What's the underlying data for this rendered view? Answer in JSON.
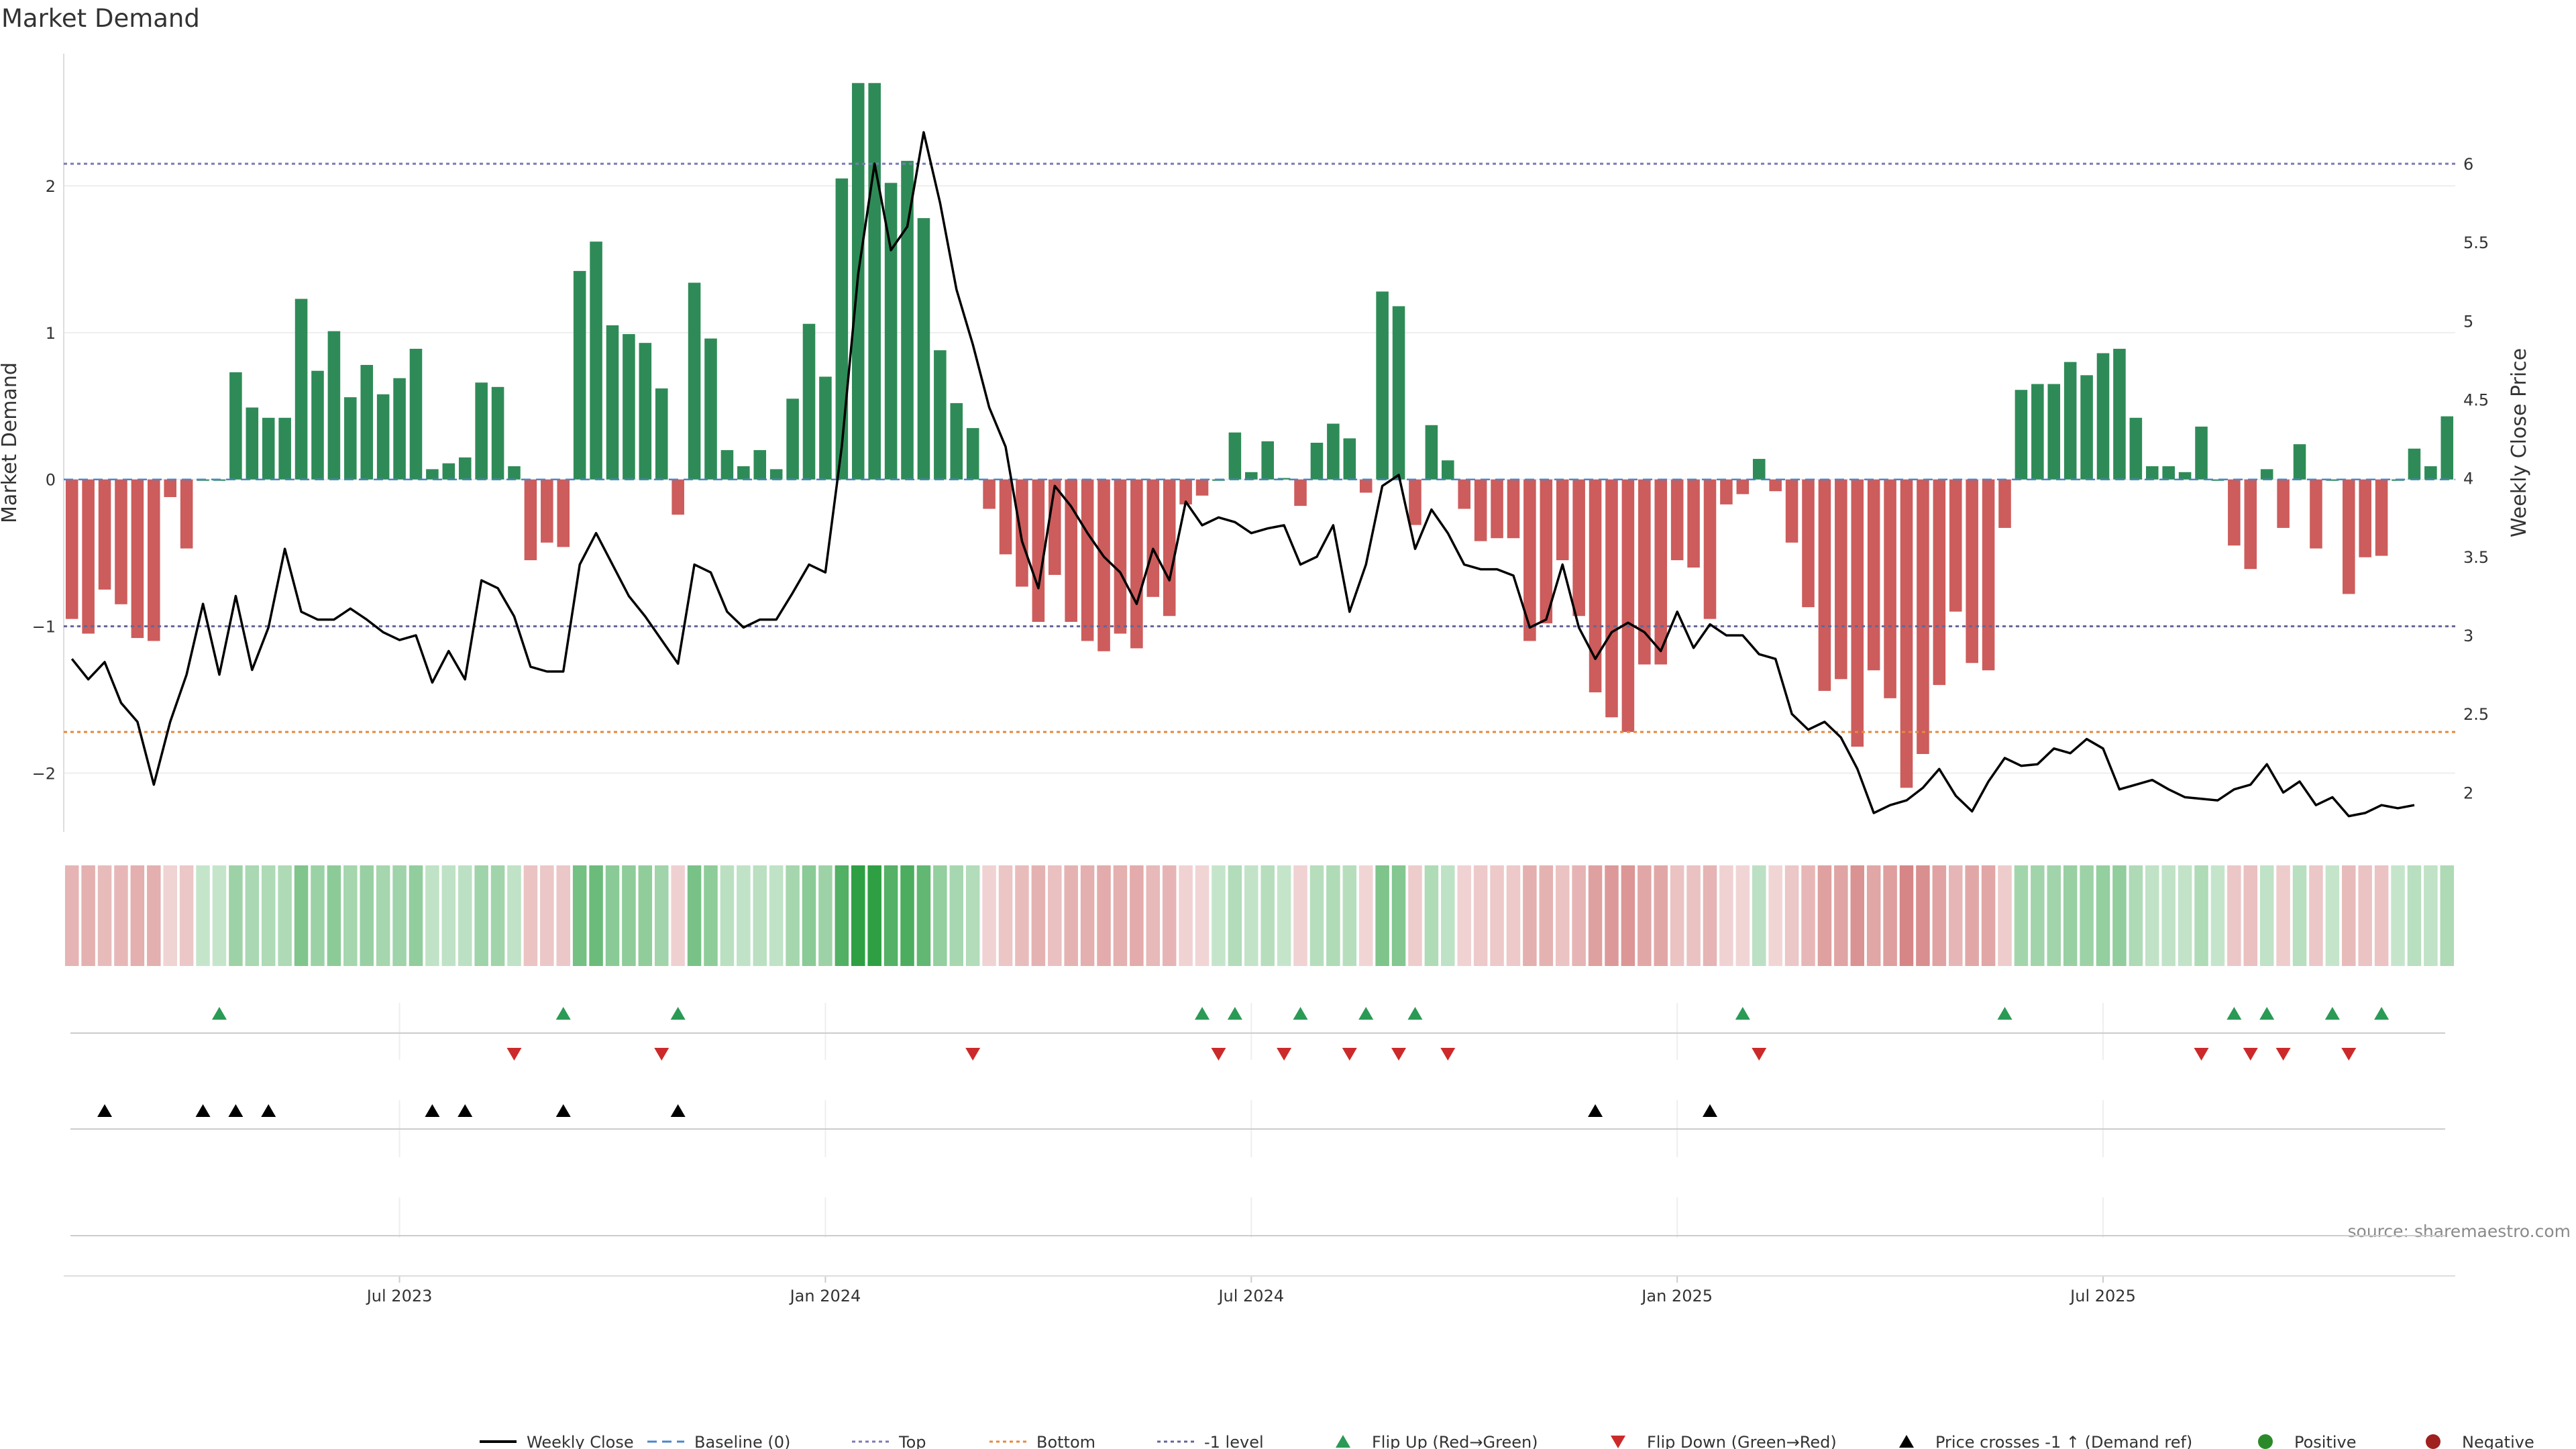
{
  "chart_data": {
    "type": "bar",
    "title": "Market Demand",
    "ylabel": "Market Demand",
    "y2label": "Weekly Close Price",
    "ylim": [
      -2.4,
      2.9
    ],
    "y2lim": [
      1.75,
      6.7
    ],
    "yticks": [
      {
        "v": 2,
        "label": "2"
      },
      {
        "v": 1,
        "label": "1"
      },
      {
        "v": 0,
        "label": "0"
      },
      {
        "v": -1,
        "label": "−1"
      },
      {
        "v": -2,
        "label": "−2"
      }
    ],
    "y2ticks": [
      {
        "v": 6,
        "label": "6"
      },
      {
        "v": 5.5,
        "label": "5.5"
      },
      {
        "v": 5,
        "label": "5"
      },
      {
        "v": 4.5,
        "label": "4.5"
      },
      {
        "v": 4,
        "label": "4"
      },
      {
        "v": 3.5,
        "label": "3.5"
      },
      {
        "v": 3,
        "label": "3"
      },
      {
        "v": 2.5,
        "label": "2.5"
      },
      {
        "v": 2,
        "label": "2"
      }
    ],
    "xtick_labels": [
      {
        "index": 20,
        "label": "Jul 2023"
      },
      {
        "index": 46,
        "label": "Jan 2024"
      },
      {
        "index": 72,
        "label": "Jul 2024"
      },
      {
        "index": 98,
        "label": "Jan 2025"
      },
      {
        "index": 124,
        "label": "Jul 2025"
      }
    ],
    "reference_lines": {
      "top": 2.15,
      "bottom": -1.72,
      "minus_one": -1.0,
      "baseline": 0
    },
    "demand": [
      -0.95,
      -1.05,
      -0.75,
      -0.85,
      -1.08,
      -1.1,
      -0.12,
      -0.47,
      0.0,
      0.0,
      0.73,
      0.49,
      0.42,
      0.42,
      1.23,
      0.74,
      1.01,
      0.56,
      0.78,
      0.58,
      0.69,
      0.89,
      0.07,
      0.11,
      0.15,
      0.66,
      0.63,
      0.09,
      -0.55,
      -0.43,
      -0.46,
      1.42,
      1.62,
      1.05,
      0.99,
      0.93,
      0.62,
      -0.24,
      1.34,
      0.96,
      0.2,
      0.09,
      0.2,
      0.07,
      0.55,
      1.06,
      0.7,
      2.05,
      2.7,
      2.7,
      2.02,
      2.17,
      1.78,
      0.88,
      0.52,
      0.35,
      -0.2,
      -0.51,
      -0.73,
      -0.97,
      -0.65,
      -0.97,
      -1.1,
      -1.17,
      -1.05,
      -1.15,
      -0.8,
      -0.93,
      -0.17,
      -0.11,
      0.0,
      0.32,
      0.05,
      0.26,
      0.01,
      -0.18,
      0.25,
      0.38,
      0.28,
      -0.09,
      1.28,
      1.18,
      -0.31,
      0.37,
      0.13,
      -0.2,
      -0.42,
      -0.4,
      -0.4,
      -1.1,
      -0.98,
      -0.55,
      -0.93,
      -1.45,
      -1.62,
      -1.72,
      -1.26,
      -1.26,
      -0.55,
      -0.6,
      -0.95,
      -0.17,
      -0.1,
      0.14,
      -0.08,
      -0.43,
      -0.87,
      -1.44,
      -1.36,
      -1.82,
      -1.3,
      -1.49,
      -2.1,
      -1.87,
      -1.4,
      -0.9,
      -1.25,
      -1.3,
      -0.33,
      0.61,
      0.65,
      0.65,
      0.8,
      0.71,
      0.86,
      0.89,
      0.42,
      0.09,
      0.09,
      0.05,
      0.36,
      0.0,
      -0.45,
      -0.61,
      0.07,
      -0.33,
      0.24,
      -0.47,
      0.0,
      -0.78,
      -0.53,
      -0.52,
      0.0,
      0.21,
      0.09,
      0.43
    ],
    "weekly_close": [
      2.85,
      2.72,
      2.83,
      2.57,
      2.45,
      2.05,
      2.45,
      2.75,
      3.2,
      2.75,
      3.25,
      2.78,
      3.05,
      3.55,
      3.15,
      3.1,
      3.1,
      3.17,
      3.1,
      3.02,
      2.97,
      3.0,
      2.7,
      2.9,
      2.72,
      3.35,
      3.3,
      3.12,
      2.8,
      2.77,
      2.77,
      3.45,
      3.65,
      3.45,
      3.25,
      3.12,
      2.97,
      2.82,
      3.45,
      3.4,
      3.15,
      3.05,
      3.1,
      3.1,
      3.27,
      3.45,
      3.4,
      4.2,
      5.3,
      6.0,
      5.45,
      5.6,
      6.2,
      5.75,
      5.2,
      4.85,
      4.45,
      4.2,
      3.6,
      3.3,
      3.95,
      3.82,
      3.65,
      3.5,
      3.4,
      3.2,
      3.55,
      3.35,
      3.85,
      3.7,
      3.75,
      3.72,
      3.65,
      3.68,
      3.7,
      3.45,
      3.5,
      3.7,
      3.15,
      3.45,
      3.95,
      4.02,
      3.55,
      3.8,
      3.65,
      3.45,
      3.42,
      3.42,
      3.38,
      3.05,
      3.1,
      3.45,
      3.05,
      2.85,
      3.02,
      3.08,
      3.02,
      2.9,
      3.15,
      2.92,
      3.07,
      3.0,
      3.0,
      2.88,
      2.85,
      2.5,
      2.4,
      2.45,
      2.35,
      2.15,
      1.87,
      1.92,
      1.95,
      2.03,
      2.15,
      1.98,
      1.88,
      2.07,
      2.22,
      2.17,
      2.18,
      2.28,
      2.25,
      2.34,
      2.28,
      2.02,
      2.05,
      2.08,
      2.02,
      1.97,
      1.96,
      1.95,
      2.02,
      2.05,
      2.18,
      2.0,
      2.07,
      1.92,
      1.97,
      1.85,
      1.87,
      1.92,
      1.9,
      1.92
    ],
    "heatmap_note": "",
    "flip_up_indices": [
      9,
      30,
      37,
      69,
      71,
      75,
      79,
      82,
      102,
      118,
      132,
      134,
      138,
      141
    ],
    "flip_down_indices": [
      27,
      36,
      55,
      70,
      74,
      78,
      81,
      84,
      103,
      130,
      133,
      135,
      139
    ],
    "price_cross_indices": [
      2,
      8,
      10,
      12,
      22,
      24,
      30,
      37,
      93,
      100
    ],
    "legend": [
      {
        "label": "Weekly Close",
        "kind": "line",
        "color": "#000000"
      },
      {
        "label": "Baseline (0)",
        "kind": "dashed",
        "color": "#4a86c8"
      },
      {
        "label": "Top",
        "kind": "dotted",
        "color": "#7a7ab8"
      },
      {
        "label": "Bottom",
        "kind": "dotted",
        "color": "#e8883c"
      },
      {
        "label": "-1 level",
        "kind": "dotted",
        "color": "#666699"
      },
      {
        "label": "Flip Up (Red→Green)",
        "kind": "tri-up",
        "color": "#2a9a55"
      },
      {
        "label": "Flip Down (Green→Red)",
        "kind": "tri-down",
        "color": "#cc2a2a"
      },
      {
        "label": "Price crosses -1 ↑ (Demand ref)",
        "kind": "tri-up",
        "color": "#000000"
      },
      {
        "label": "Positive",
        "kind": "dot",
        "color": "#2a8a2a"
      },
      {
        "label": "Negative",
        "kind": "dot",
        "color": "#a02020"
      }
    ],
    "colors": {
      "positive": "#2e8b57",
      "negative": "#cd5c5c"
    }
  },
  "source": "source: sharemaestro.com"
}
